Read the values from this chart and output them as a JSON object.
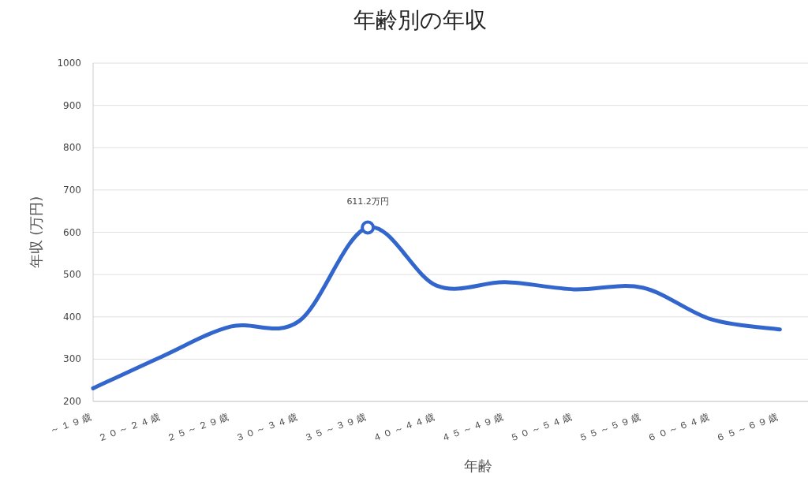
{
  "chart_data": {
    "type": "line",
    "title": "年齢別の年収",
    "xlabel": "年齢",
    "ylabel": "年収 (万円)",
    "categories": [
      "～１９歳",
      "２０～２４歳",
      "２５～２９歳",
      "３０～３４歳",
      "３５～３９歳",
      "４０～４４歳",
      "４５～４９歳",
      "５０～５４歳",
      "５５～５９歳",
      "６０～６４歳",
      "６５～６９歳"
    ],
    "series": [
      {
        "color": "#3366cc",
        "values": [
          231,
          306,
          377,
          390,
          611.2,
          474,
          482,
          465,
          469,
          394,
          370
        ]
      }
    ],
    "ylim": [
      200,
      1000
    ],
    "yticks": [
      200,
      300,
      400,
      500,
      600,
      700,
      800,
      900,
      1000
    ],
    "grid": "y",
    "annotations": [
      {
        "text": "611.2万円",
        "x": "３５～３９歳",
        "y": 611.2
      }
    ]
  }
}
